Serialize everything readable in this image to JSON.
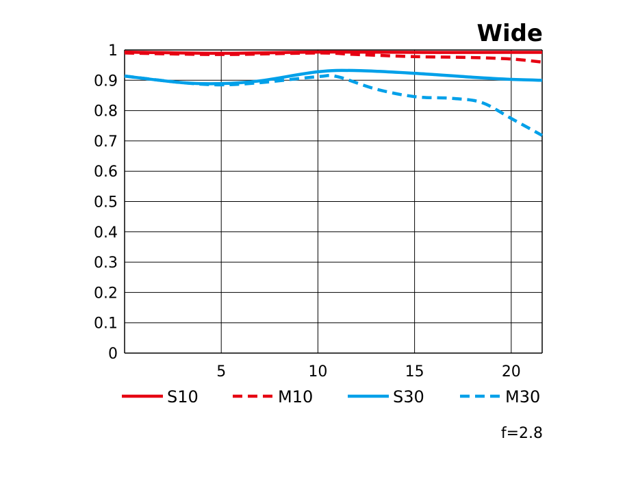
{
  "chart_data": {
    "type": "line",
    "title": "Wide",
    "annotation": "f=2.8",
    "xlim": [
      0,
      21.6
    ],
    "ylim": [
      0,
      1
    ],
    "x_ticks": [
      "5",
      "10",
      "15",
      "20"
    ],
    "y_ticks": [
      "0",
      "0.1",
      "0.2",
      "0.3",
      "0.4",
      "0.5",
      "0.6",
      "0.7",
      "0.8",
      "0.9",
      "1"
    ],
    "grid": true,
    "legend_position": "bottom",
    "series": [
      {
        "name": "S10",
        "color": "#e60012",
        "dashed": false,
        "x": [
          0,
          5,
          10,
          15,
          20,
          21.6
        ],
        "y": [
          0.993,
          0.989,
          0.993,
          0.992,
          0.992,
          0.992
        ]
      },
      {
        "name": "M10",
        "color": "#e60012",
        "dashed": true,
        "x": [
          0,
          5,
          10,
          12,
          15,
          18,
          20,
          21.6
        ],
        "y": [
          0.99,
          0.985,
          0.99,
          0.985,
          0.978,
          0.975,
          0.97,
          0.96
        ]
      },
      {
        "name": "S30",
        "color": "#00a0e9",
        "dashed": false,
        "x": [
          0,
          3,
          5,
          7,
          10,
          12,
          15,
          18,
          20,
          21.6
        ],
        "y": [
          0.914,
          0.892,
          0.889,
          0.898,
          0.928,
          0.932,
          0.923,
          0.91,
          0.903,
          0.9
        ]
      },
      {
        "name": "M30",
        "color": "#00a0e9",
        "dashed": true,
        "x": [
          0,
          3,
          5,
          7,
          10,
          11,
          13,
          15,
          17,
          18.5,
          20,
          21.6
        ],
        "y": [
          0.914,
          0.892,
          0.885,
          0.892,
          0.912,
          0.912,
          0.871,
          0.846,
          0.84,
          0.826,
          0.774,
          0.718
        ]
      }
    ]
  }
}
